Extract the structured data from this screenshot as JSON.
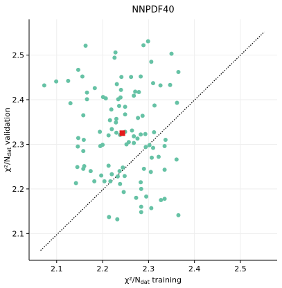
{
  "chart_data": {
    "type": "scatter",
    "title": "NNPDF40",
    "xlabel": {
      "main": "χ²/N",
      "sub": "dat",
      "rest": " training"
    },
    "ylabel": {
      "main": "χ²/N",
      "sub": "dat",
      "rest": " validation"
    },
    "xlim": [
      2.04,
      2.58
    ],
    "ylim": [
      2.04,
      2.58
    ],
    "xticks": [
      2.1,
      2.2,
      2.3,
      2.4,
      2.5
    ],
    "yticks": [
      2.1,
      2.2,
      2.3,
      2.4,
      2.5
    ],
    "grid": true,
    "colors": {
      "points": "#66c2a5",
      "highlight": "#e41a1c",
      "diagonal": "#000000"
    },
    "diagonal": {
      "style": "dotted",
      "from": [
        2.065,
        2.062
      ],
      "to": [
        2.552,
        2.552
      ]
    },
    "highlight": {
      "x": 2.243,
      "y": 2.325
    },
    "points": [
      [
        2.073,
        2.432
      ],
      [
        2.099,
        2.441
      ],
      [
        2.125,
        2.442
      ],
      [
        2.13,
        2.392
      ],
      [
        2.147,
        2.467
      ],
      [
        2.156,
        2.452
      ],
      [
        2.163,
        2.521
      ],
      [
        2.166,
        2.416
      ],
      [
        2.166,
        2.401
      ],
      [
        2.183,
        2.426
      ],
      [
        2.201,
        2.406
      ],
      [
        2.207,
        2.403
      ],
      [
        2.226,
        2.494
      ],
      [
        2.219,
        2.378
      ],
      [
        2.228,
        2.506
      ],
      [
        2.231,
        2.435
      ],
      [
        2.234,
        2.401
      ],
      [
        2.239,
        2.405
      ],
      [
        2.241,
        2.451
      ],
      [
        2.24,
        2.422
      ],
      [
        2.236,
        2.386
      ],
      [
        2.216,
        2.354
      ],
      [
        2.229,
        2.349
      ],
      [
        2.23,
        2.357
      ],
      [
        2.249,
        2.384
      ],
      [
        2.249,
        2.367
      ],
      [
        2.268,
        2.409
      ],
      [
        2.262,
        2.451
      ],
      [
        2.271,
        2.418
      ],
      [
        2.279,
        2.417
      ],
      [
        2.283,
        2.452
      ],
      [
        2.289,
        2.522
      ],
      [
        2.299,
        2.531
      ],
      [
        2.306,
        2.485
      ],
      [
        2.31,
        2.437
      ],
      [
        2.326,
        2.432
      ],
      [
        2.35,
        2.503
      ],
      [
        2.365,
        2.462
      ],
      [
        2.347,
        2.433
      ],
      [
        2.362,
        2.393
      ],
      [
        2.313,
        2.387
      ],
      [
        2.287,
        2.364
      ],
      [
        2.277,
        2.359
      ],
      [
        2.158,
        2.365
      ],
      [
        2.147,
        2.314
      ],
      [
        2.194,
        2.328
      ],
      [
        2.2,
        2.299
      ],
      [
        2.195,
        2.296
      ],
      [
        2.159,
        2.31
      ],
      [
        2.146,
        2.295
      ],
      [
        2.158,
        2.285
      ],
      [
        2.22,
        2.334
      ],
      [
        2.213,
        2.32
      ],
      [
        2.23,
        2.326
      ],
      [
        2.238,
        2.321
      ],
      [
        2.249,
        2.328
      ],
      [
        2.264,
        2.331
      ],
      [
        2.268,
        2.318
      ],
      [
        2.268,
        2.303
      ],
      [
        2.276,
        2.313
      ],
      [
        2.257,
        2.305
      ],
      [
        2.252,
        2.3
      ],
      [
        2.283,
        2.322
      ],
      [
        2.293,
        2.323
      ],
      [
        2.312,
        2.327
      ],
      [
        2.302,
        2.298
      ],
      [
        2.31,
        2.292
      ],
      [
        2.294,
        2.294
      ],
      [
        2.337,
        2.31
      ],
      [
        2.335,
        2.296
      ],
      [
        2.322,
        2.272
      ],
      [
        2.16,
        2.251
      ],
      [
        2.158,
        2.245
      ],
      [
        2.145,
        2.249
      ],
      [
        2.174,
        2.24
      ],
      [
        2.197,
        2.23
      ],
      [
        2.213,
        2.252
      ],
      [
        2.22,
        2.233
      ],
      [
        2.233,
        2.228
      ],
      [
        2.237,
        2.24
      ],
      [
        2.244,
        2.248
      ],
      [
        2.248,
        2.229
      ],
      [
        2.238,
        2.211
      ],
      [
        2.217,
        2.217
      ],
      [
        2.204,
        2.217
      ],
      [
        2.182,
        2.217
      ],
      [
        2.142,
        2.213
      ],
      [
        2.29,
        2.245
      ],
      [
        2.307,
        2.27
      ],
      [
        2.305,
        2.238
      ],
      [
        2.335,
        2.243
      ],
      [
        2.361,
        2.266
      ],
      [
        2.283,
        2.215
      ],
      [
        2.284,
        2.2
      ],
      [
        2.295,
        2.183
      ],
      [
        2.273,
        2.18
      ],
      [
        2.284,
        2.16
      ],
      [
        2.284,
        2.148
      ],
      [
        2.246,
        2.193
      ],
      [
        2.327,
        2.175
      ],
      [
        2.335,
        2.178
      ],
      [
        2.306,
        2.157
      ],
      [
        2.365,
        2.141
      ],
      [
        2.214,
        2.137
      ],
      [
        2.232,
        2.132
      ]
    ]
  }
}
